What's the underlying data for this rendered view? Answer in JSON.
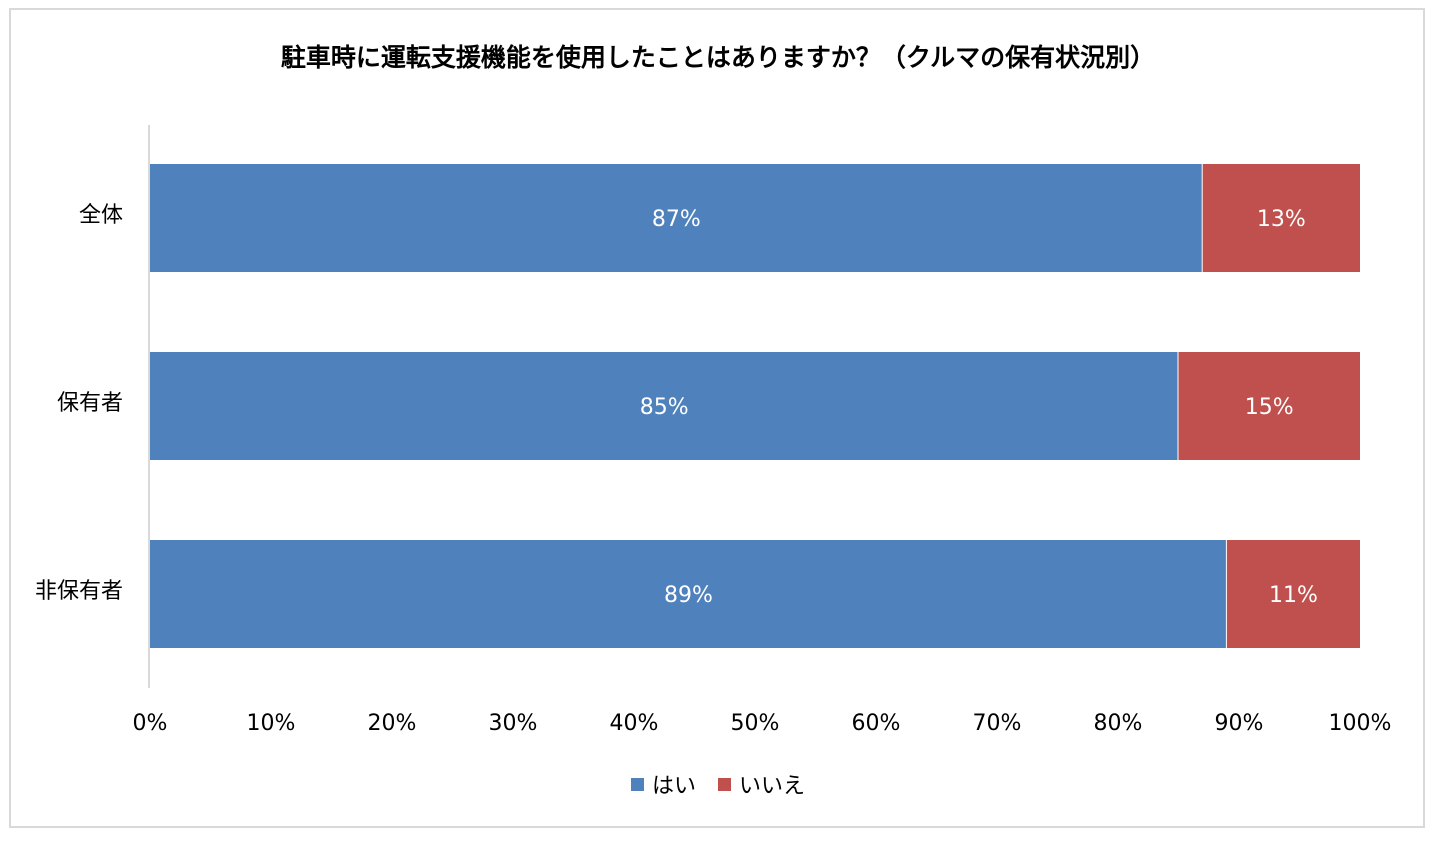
{
  "chart_data": {
    "type": "bar",
    "orientation": "horizontal",
    "stacked": true,
    "percent": true,
    "title": "駐車時に運転支援機能を使用したことはありますか？（クルマの保有状況別）",
    "categories": [
      "全体",
      "保有者",
      "非保有者"
    ],
    "series": [
      {
        "name": "はい",
        "values": [
          87,
          85,
          89
        ],
        "labels": [
          "87%",
          "85%",
          "89%"
        ],
        "color": "#4f81bd"
      },
      {
        "name": "いいえ",
        "values": [
          13,
          15,
          11
        ],
        "labels": [
          "13%",
          "15%",
          "11%"
        ],
        "color": "#c0504d"
      }
    ],
    "xlim": [
      0,
      100
    ],
    "xticks": [
      "0%",
      "10%",
      "20%",
      "30%",
      "40%",
      "50%",
      "60%",
      "70%",
      "80%",
      "90%",
      "100%"
    ],
    "grid": false,
    "legend": "bottom"
  }
}
